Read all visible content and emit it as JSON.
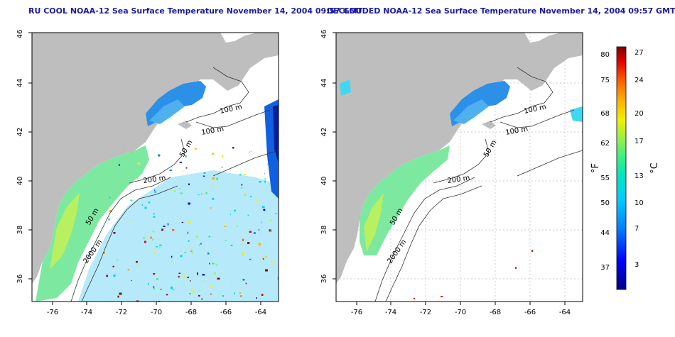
{
  "left_panel": {
    "title": "RU COOL NOAA-12 Sea Surface Temperature November 14, 2004 09:57 GMT",
    "lat_ticks": [
      "46",
      "44",
      "42",
      "40",
      "38",
      "36"
    ],
    "lon_ticks": [
      "-76",
      "-74",
      "-72",
      "-70",
      "-68",
      "-66",
      "-64"
    ],
    "contour_labels": [
      "100 m",
      "100 m",
      "50 m",
      "200 m",
      "50 m",
      "2000 m"
    ]
  },
  "right_panel": {
    "title": "DECLOUDED NOAA-12 Sea Surface Temperature November 14, 2004 09:57 GMT",
    "lat_ticks": [
      "46",
      "44",
      "42",
      "40",
      "38",
      "36"
    ],
    "lon_ticks": [
      "-76",
      "-74",
      "-72",
      "-70",
      "-68",
      "-66",
      "-64"
    ],
    "contour_labels": [
      "100 m",
      "100 m",
      "50 m",
      "200 m",
      "50 m",
      "2000 m"
    ]
  },
  "colorbar": {
    "unit_f": "°F",
    "unit_c": "°C",
    "f_ticks": [
      "80",
      "75",
      "68",
      "62",
      "55",
      "50",
      "44",
      "37"
    ],
    "c_ticks": [
      "27",
      "24",
      "20",
      "17",
      "13",
      "10",
      "7",
      "3"
    ],
    "colors": [
      "#000080",
      "#0000ff",
      "#0080ff",
      "#00ccff",
      "#00e5c0",
      "#40f080",
      "#a0f040",
      "#f0f000",
      "#ffb000",
      "#ff6000",
      "#e00000",
      "#800000"
    ]
  }
}
